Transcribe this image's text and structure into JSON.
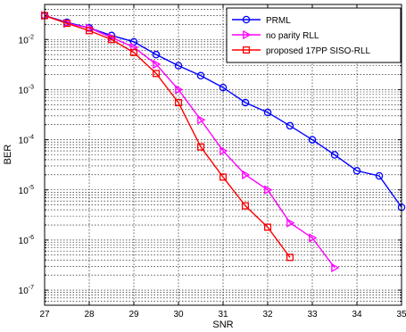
{
  "chart_data": {
    "type": "line",
    "xlabel": "SNR",
    "ylabel": "BER",
    "xlim": [
      27,
      35
    ],
    "ylim": [
      5e-08,
      0.05
    ],
    "yscale": "log",
    "grid": true,
    "legend_position": "top-right",
    "x_ticks": [
      "27",
      "28",
      "29",
      "30",
      "31",
      "32",
      "33",
      "34",
      "35"
    ],
    "y_ticks": [
      {
        "exp": -7,
        "base": "10",
        "sup": "-7"
      },
      {
        "exp": -6,
        "base": "10",
        "sup": "-6"
      },
      {
        "exp": -5,
        "base": "10",
        "sup": "-5"
      },
      {
        "exp": -4,
        "base": "10",
        "sup": "-4"
      },
      {
        "exp": -3,
        "base": "10",
        "sup": "-3"
      },
      {
        "exp": -2,
        "base": "10",
        "sup": "-2"
      }
    ],
    "series": [
      {
        "name": "PRML",
        "color": "#0000ff",
        "marker": "circle",
        "x": [
          27,
          27.5,
          28,
          28.5,
          29,
          29.5,
          30,
          30.5,
          31,
          31.5,
          32,
          32.5,
          33,
          33.5,
          34,
          34.5,
          35
        ],
        "y": [
          0.03,
          0.022,
          0.017,
          0.012,
          0.009,
          0.005,
          0.003,
          0.0019,
          0.0011,
          0.00055,
          0.00035,
          0.00019,
          0.0001,
          5e-05,
          2.4e-05,
          1.9e-05,
          4.5e-06
        ]
      },
      {
        "name": "no parity RLL",
        "color": "#ff00ff",
        "marker": "triangle-right",
        "x": [
          27,
          27.5,
          28,
          28.5,
          29,
          29.5,
          30,
          30.5,
          31,
          31.5,
          32,
          32.5,
          33,
          33.5
        ],
        "y": [
          0.03,
          0.021,
          0.017,
          0.011,
          0.007,
          0.0032,
          0.001,
          0.00025,
          6e-05,
          2e-05,
          1e-05,
          2.2e-06,
          1.1e-06,
          2.8e-07
        ]
      },
      {
        "name": "proposed 17PP SISO-RLL",
        "color": "#ff0000",
        "marker": "square",
        "x": [
          27,
          27.5,
          28,
          28.5,
          29,
          29.5,
          30,
          30.5,
          31,
          31.5,
          32,
          32.5
        ],
        "y": [
          0.03,
          0.021,
          0.015,
          0.01,
          0.0055,
          0.0021,
          0.00055,
          7.2e-05,
          1.8e-05,
          4.8e-06,
          1.8e-06,
          4.5e-07
        ]
      }
    ]
  }
}
